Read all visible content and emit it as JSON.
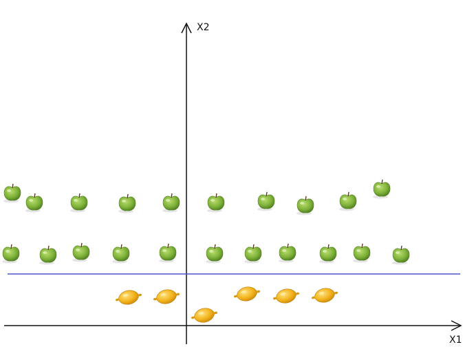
{
  "axes": {
    "x_label": "X1",
    "y_label": "X2",
    "axis_color": "#111111"
  },
  "separator": {
    "color": "#4a56c8"
  },
  "colors": {
    "apple_green": "#7fb23a",
    "apple_highlight": "#b7dd6d",
    "lemon_yellow": "#f2b21b",
    "lemon_highlight": "#ffd86a"
  },
  "apples": {
    "icon": "green-apple-icon",
    "count": 21
  },
  "lemons": {
    "icon": "lemon-icon",
    "count": 6
  }
}
